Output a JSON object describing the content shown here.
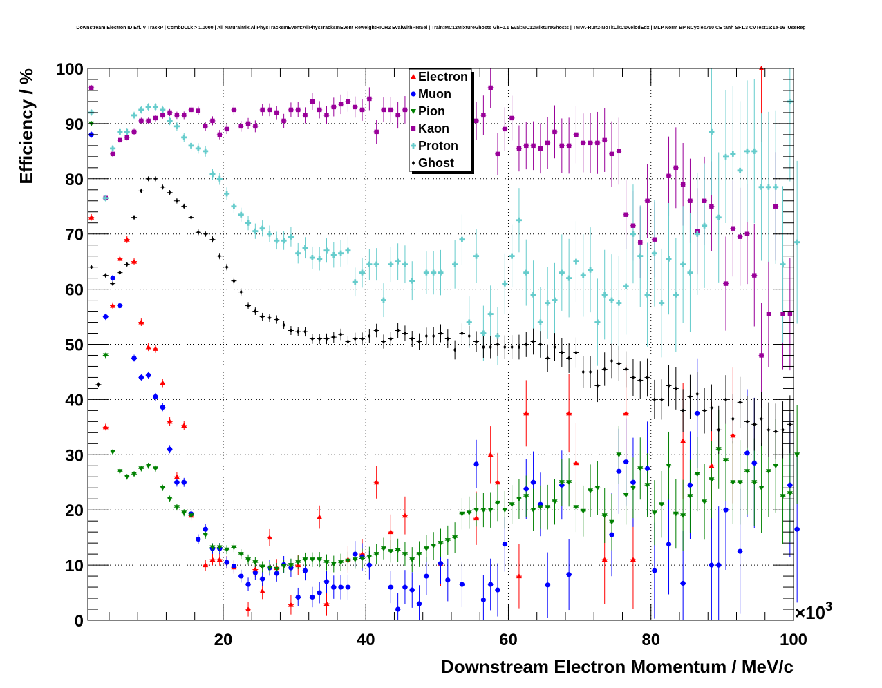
{
  "chart_data": {
    "type": "scatter",
    "title": "Downstream Electron ID Eff. V TrackP | CombDLLk > 1.0000 | All NaturalMix AllPhysTracksInEvent:AllPhysTracksInEvent ReweightRICH2 EvalWithPreSel | Train:MC12MixtureGhosts GhF0.1 Eval:MC12MixtureGhosts | TMVA-Run2-NoTkLikCDVelodEdx | MLP Norm BP NCycles750 CE tanh SF1.3 CVTest15:1e-16 |UseReg",
    "xlabel": "Downstream Electron Momentum / MeV/c",
    "ylabel": "Efficiency / %",
    "x_multiplier_label": "×10",
    "x_multiplier_exp": "3",
    "xlim": [
      1,
      100
    ],
    "ylim": [
      0,
      100
    ],
    "x_ticks": [
      20,
      40,
      60,
      80,
      100
    ],
    "y_ticks": [
      0,
      10,
      20,
      30,
      40,
      50,
      60,
      70,
      80,
      90,
      100
    ],
    "x_tick_labels": [
      "20",
      "40",
      "60",
      "80",
      "100"
    ],
    "y_tick_labels": [
      "0",
      "10",
      "20",
      "30",
      "40",
      "50",
      "60",
      "70",
      "80",
      "90",
      "100"
    ],
    "grid": true,
    "legend_position": "top-center",
    "x": [
      1.5,
      2.5,
      3.5,
      4.5,
      5.5,
      6.5,
      7.5,
      8.5,
      9.5,
      10.5,
      11.5,
      12.5,
      13.5,
      14.5,
      15.5,
      16.5,
      17.5,
      18.5,
      19.5,
      20.5,
      21.5,
      22.5,
      23.5,
      24.5,
      25.5,
      26.5,
      27.5,
      28.5,
      29.5,
      30.5,
      31.5,
      32.5,
      33.5,
      34.5,
      35.5,
      36.5,
      37.5,
      38.5,
      39.5,
      40.5,
      41.5,
      42.5,
      43.5,
      44.5,
      45.5,
      46.5,
      47.5,
      48.5,
      49.5,
      50.5,
      51.5,
      52.5,
      53.5,
      54.5,
      55.5,
      56.5,
      57.5,
      58.5,
      59.5,
      60.5,
      61.5,
      62.5,
      63.5,
      64.5,
      65.5,
      66.5,
      67.5,
      68.5,
      69.5,
      70.5,
      71.5,
      72.5,
      73.5,
      74.5,
      75.5,
      76.5,
      77.5,
      78.5,
      79.5,
      80.5,
      81.5,
      82.5,
      83.5,
      84.5,
      85.5,
      86.5,
      87.5,
      88.5,
      89.5,
      90.5,
      91.5,
      92.5,
      93.5,
      94.5,
      95.5,
      96.5,
      97.5,
      98.5,
      99.5,
      100.5
    ],
    "series": [
      {
        "name": "Electron",
        "color": "#ff0000",
        "marker": "triangle-up",
        "values": [
          73,
          null,
          35,
          57,
          65.5,
          69,
          65,
          54,
          49.5,
          49.2,
          43,
          36,
          26,
          35.3,
          19,
          null,
          10,
          11,
          11,
          10.5,
          9.6,
          null,
          2,
          9.2,
          5.3,
          15,
          9.5,
          null,
          2.8,
          10,
          null,
          null,
          18.7,
          3,
          null,
          null,
          11,
          null,
          12,
          null,
          25,
          null,
          16,
          null,
          19,
          null,
          null,
          null,
          null,
          10.3,
          null,
          null,
          null,
          null,
          18.5,
          null,
          30,
          25,
          null,
          null,
          8,
          37.5,
          null,
          null,
          null,
          null,
          null,
          37.5,
          28.5,
          null,
          null,
          null,
          11,
          null,
          null,
          37.5,
          11,
          null,
          null,
          null,
          null,
          null,
          null,
          32.5,
          null,
          null,
          null,
          28,
          null,
          null,
          33.5,
          null,
          null,
          null,
          100,
          null,
          null,
          null,
          null,
          null
        ]
      },
      {
        "name": "Muon",
        "color": "#0000ff",
        "marker": "circle",
        "values": [
          88,
          null,
          55,
          62,
          57,
          null,
          47.5,
          44,
          44.4,
          40.5,
          38.6,
          31,
          25,
          25,
          19.3,
          14.7,
          16.5,
          13,
          13,
          10.5,
          9.8,
          8,
          6.5,
          8.6,
          7.5,
          9.5,
          8.5,
          10.1,
          9.5,
          4.2,
          9,
          4.2,
          5,
          7,
          6,
          6,
          6,
          12,
          11.5,
          10,
          null,
          null,
          6,
          2,
          6,
          5.5,
          3,
          8,
          null,
          10.3,
          7.3,
          null,
          6.5,
          null,
          28.3,
          3.7,
          6.5,
          5.5,
          13.8,
          null,
          null,
          23.8,
          25,
          21,
          6.4,
          null,
          24.5,
          8.3,
          null,
          null,
          null,
          null,
          null,
          15.5,
          27,
          28.7,
          25,
          null,
          27.5,
          9,
          null,
          13.8,
          null,
          6.7,
          24.5,
          37.5,
          null,
          10,
          10,
          20,
          null,
          12.5,
          30.3,
          28.5,
          null,
          null,
          null,
          null,
          24.5,
          16.5
        ]
      },
      {
        "name": "Pion",
        "color": "#008000",
        "marker": "triangle-down",
        "values": [
          90,
          null,
          48,
          30.5,
          27,
          26,
          26.5,
          27.5,
          28,
          27.5,
          24,
          22,
          20.5,
          19.5,
          19,
          null,
          15.5,
          13.2,
          13.2,
          12.8,
          13.2,
          12,
          11,
          10.5,
          9.7,
          9.5,
          9.3,
          9.8,
          10,
          10.5,
          11,
          11,
          11,
          10.5,
          10.2,
          10.5,
          10.8,
          11,
          11.2,
          11.5,
          12,
          13,
          12.5,
          12.7,
          12,
          11,
          12,
          13,
          13.5,
          14,
          14.5,
          15,
          19.3,
          19.5,
          20,
          20,
          20,
          21.3,
          20,
          21,
          22,
          22.5,
          20,
          20.5,
          20.5,
          21.5,
          25,
          25,
          20.5,
          19.8,
          23.5,
          24,
          19,
          17.8,
          30,
          22.7,
          24,
          27.5,
          24.5,
          19.5,
          21,
          28,
          19.3,
          19,
          22.5,
          26.5,
          21.5,
          25.5,
          31,
          29,
          25,
          25,
          27,
          25,
          24,
          27,
          28,
          22.5,
          23,
          30
        ]
      },
      {
        "name": "Kaon",
        "color": "#990099",
        "marker": "square",
        "values": [
          96.5,
          null,
          76.5,
          84.5,
          87,
          87.5,
          88.5,
          90.5,
          90.5,
          91,
          91.5,
          92,
          91.5,
          91.5,
          92.5,
          92.3,
          89.5,
          90.5,
          88,
          89,
          92.5,
          89.5,
          90,
          89.5,
          92.5,
          92.5,
          92,
          90.5,
          92.5,
          92.5,
          91.5,
          94,
          92.5,
          91.5,
          93,
          93.5,
          94,
          93,
          92.5,
          94.5,
          88.5,
          92.5,
          92.5,
          91.5,
          92.5,
          88,
          93.5,
          91.5,
          93,
          90.5,
          94.5,
          92,
          93,
          92.5,
          90.5,
          91.5,
          96.5,
          84.5,
          89,
          91,
          85.5,
          86,
          86,
          85.5,
          86.5,
          88.5,
          86,
          86,
          88,
          86.5,
          86.5,
          86.5,
          87,
          84.5,
          85,
          73.5,
          71.5,
          68.5,
          76,
          69,
          null,
          80.5,
          82,
          79,
          76,
          70.5,
          76,
          75,
          null,
          61,
          71,
          69.5,
          70,
          62.5,
          48,
          55.5,
          75,
          55.5,
          55.5,
          null
        ]
      },
      {
        "name": "Proton",
        "color": "#66cccc",
        "marker": "cross",
        "values": [
          92,
          null,
          76.5,
          85.5,
          88.5,
          88.5,
          91.5,
          92.5,
          93,
          93,
          92.5,
          90.5,
          89.5,
          87.5,
          86,
          85.5,
          85,
          80.8,
          80,
          77.3,
          75,
          73.5,
          72,
          70.5,
          71,
          70,
          68.8,
          68.8,
          69.5,
          66.5,
          67.5,
          65.7,
          65.5,
          67,
          66.2,
          66.5,
          67,
          61.3,
          63,
          64.5,
          64.5,
          58,
          64.5,
          65,
          64.5,
          61.5,
          null,
          63,
          63,
          63,
          null,
          64.5,
          69,
          54,
          66,
          52,
          55.5,
          51.5,
          61,
          66,
          72.5,
          63,
          59,
          54,
          57.5,
          58,
          63,
          62,
          65,
          62.5,
          63.5,
          54,
          59,
          58,
          57.5,
          60.5,
          70,
          66,
          59,
          66.5,
          57.5,
          65.5,
          59,
          64.5,
          63,
          70,
          71.5,
          88.5,
          73,
          84,
          84.5,
          81.5,
          85,
          85,
          78.5,
          78.5,
          78.5,
          64.5,
          94,
          68.5
        ]
      },
      {
        "name": "Ghost",
        "color": "#000000",
        "marker": "diamond",
        "values": [
          64,
          42.7,
          62.5,
          61,
          63,
          64.5,
          73,
          77.8,
          80,
          80,
          78.5,
          77.5,
          76,
          75,
          73,
          70.3,
          70,
          69,
          66,
          64,
          61.5,
          59.5,
          57,
          56,
          55,
          54.8,
          54.5,
          53.5,
          52.5,
          52.3,
          52.3,
          51,
          51,
          51,
          51.3,
          51.8,
          50.5,
          51,
          51,
          51.5,
          52.5,
          50.5,
          51,
          52.5,
          52,
          51,
          50.5,
          51.5,
          51.5,
          52,
          51,
          49,
          52,
          51.5,
          50.5,
          49.5,
          49.5,
          50,
          49.5,
          49.5,
          49.5,
          50,
          50.5,
          50,
          47.5,
          49.5,
          48.5,
          47.5,
          48.5,
          45,
          45,
          42.5,
          45.5,
          47,
          46.5,
          45.5,
          44,
          43.5,
          44,
          40,
          40,
          42.5,
          42,
          38,
          40.5,
          41,
          38,
          38.5,
          34.5,
          40,
          36.5,
          39.5,
          36,
          35.5,
          36.5,
          34.5,
          34.2,
          34.5,
          35.5,
          null
        ]
      }
    ]
  }
}
